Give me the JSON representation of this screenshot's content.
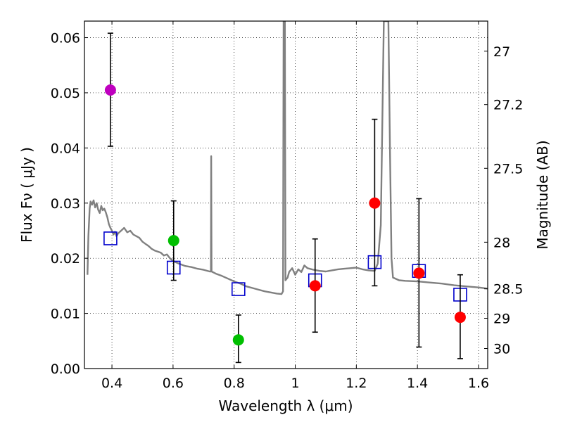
{
  "chart_data": {
    "type": "scatter",
    "xlabel": "Wavelength  λ (μm)",
    "ylabel": "Flux  Fν  ( μJy )",
    "ylabel_right": "Magnitude (AB)",
    "xlim": [
      0.31,
      1.63
    ],
    "ylim": [
      0.0,
      0.063
    ],
    "grid": true,
    "x_ticks": [
      {
        "value": 0.4,
        "label": "0.4"
      },
      {
        "value": 0.6,
        "label": "0.6"
      },
      {
        "value": 0.8,
        "label": "0.8"
      },
      {
        "value": 1.0,
        "label": "1"
      },
      {
        "value": 1.2,
        "label": "1.2"
      },
      {
        "value": 1.4,
        "label": "1.4"
      },
      {
        "value": 1.6,
        "label": "1.6"
      }
    ],
    "y_ticks": [
      {
        "value": 0.0,
        "label": "0.00"
      },
      {
        "value": 0.01,
        "label": "0.01"
      },
      {
        "value": 0.02,
        "label": "0.02"
      },
      {
        "value": 0.03,
        "label": "0.03"
      },
      {
        "value": 0.04,
        "label": "0.04"
      },
      {
        "value": 0.05,
        "label": "0.05"
      },
      {
        "value": 0.06,
        "label": "0.06"
      }
    ],
    "mag_ticks": [
      {
        "value": 27,
        "label": "27"
      },
      {
        "value": 27.2,
        "label": "27.2"
      },
      {
        "value": 27.5,
        "label": "27.5"
      },
      {
        "value": 28,
        "label": "28"
      },
      {
        "value": 28.5,
        "label": "28.5"
      },
      {
        "value": 29,
        "label": "29"
      },
      {
        "value": 30,
        "label": "30"
      }
    ],
    "observed": [
      {
        "x": 0.395,
        "y": 0.0505,
        "err_low": 0.0403,
        "err_high": 0.0608,
        "color": "#bf00bf"
      },
      {
        "x": 0.602,
        "y": 0.0232,
        "err_low": 0.016,
        "err_high": 0.0304,
        "color": "#00bf00"
      },
      {
        "x": 0.814,
        "y": 0.0052,
        "err_low": 0.0011,
        "err_high": 0.0097,
        "color": "#00bf00"
      },
      {
        "x": 1.065,
        "y": 0.015,
        "err_low": 0.0066,
        "err_high": 0.0235,
        "color": "#ff0000"
      },
      {
        "x": 1.26,
        "y": 0.03,
        "err_low": 0.015,
        "err_high": 0.0452,
        "color": "#ff0000"
      },
      {
        "x": 1.405,
        "y": 0.0173,
        "err_low": 0.0039,
        "err_high": 0.0308,
        "color": "#ff0000"
      },
      {
        "x": 1.54,
        "y": 0.0093,
        "err_low": 0.0018,
        "err_high": 0.017,
        "color": "#ff0000"
      }
    ],
    "model_points": [
      {
        "x": 0.395,
        "y": 0.0236
      },
      {
        "x": 0.602,
        "y": 0.0183
      },
      {
        "x": 0.814,
        "y": 0.0144
      },
      {
        "x": 1.065,
        "y": 0.016
      },
      {
        "x": 1.26,
        "y": 0.0193
      },
      {
        "x": 1.405,
        "y": 0.0177
      },
      {
        "x": 1.54,
        "y": 0.0134
      }
    ],
    "model_spectrum": [
      [
        0.32,
        0.017
      ],
      [
        0.323,
        0.024
      ],
      [
        0.327,
        0.029
      ],
      [
        0.33,
        0.0303
      ],
      [
        0.335,
        0.0297
      ],
      [
        0.34,
        0.0305
      ],
      [
        0.345,
        0.0292
      ],
      [
        0.35,
        0.03
      ],
      [
        0.355,
        0.0288
      ],
      [
        0.36,
        0.0282
      ],
      [
        0.365,
        0.0295
      ],
      [
        0.37,
        0.0287
      ],
      [
        0.375,
        0.029
      ],
      [
        0.38,
        0.0283
      ],
      [
        0.385,
        0.0274
      ],
      [
        0.39,
        0.0262
      ],
      [
        0.395,
        0.0255
      ],
      [
        0.4,
        0.025
      ],
      [
        0.405,
        0.0243
      ],
      [
        0.41,
        0.0248
      ],
      [
        0.415,
        0.024
      ],
      [
        0.42,
        0.0245
      ],
      [
        0.43,
        0.025
      ],
      [
        0.44,
        0.0255
      ],
      [
        0.45,
        0.0247
      ],
      [
        0.46,
        0.025
      ],
      [
        0.47,
        0.0243
      ],
      [
        0.48,
        0.024
      ],
      [
        0.49,
        0.0237
      ],
      [
        0.5,
        0.023
      ],
      [
        0.51,
        0.0226
      ],
      [
        0.52,
        0.0222
      ],
      [
        0.53,
        0.0217
      ],
      [
        0.54,
        0.0214
      ],
      [
        0.55,
        0.0212
      ],
      [
        0.56,
        0.021
      ],
      [
        0.57,
        0.0205
      ],
      [
        0.58,
        0.0207
      ],
      [
        0.59,
        0.02
      ],
      [
        0.6,
        0.0195
      ],
      [
        0.62,
        0.019
      ],
      [
        0.64,
        0.0186
      ],
      [
        0.66,
        0.0184
      ],
      [
        0.68,
        0.0181
      ],
      [
        0.7,
        0.0179
      ],
      [
        0.72,
        0.0176
      ],
      [
        0.724,
        0.0176
      ],
      [
        0.725,
        0.0385
      ],
      [
        0.726,
        0.0176
      ],
      [
        0.74,
        0.0172
      ],
      [
        0.76,
        0.0168
      ],
      [
        0.78,
        0.0163
      ],
      [
        0.8,
        0.0158
      ],
      [
        0.82,
        0.0154
      ],
      [
        0.84,
        0.0149
      ],
      [
        0.86,
        0.0146
      ],
      [
        0.88,
        0.0143
      ],
      [
        0.9,
        0.014
      ],
      [
        0.92,
        0.0138
      ],
      [
        0.94,
        0.0136
      ],
      [
        0.955,
        0.0135
      ],
      [
        0.96,
        0.014
      ],
      [
        0.962,
        0.063
      ],
      [
        0.966,
        0.063
      ],
      [
        0.968,
        0.016
      ],
      [
        0.975,
        0.0165
      ],
      [
        0.98,
        0.0175
      ],
      [
        0.99,
        0.0182
      ],
      [
        1.0,
        0.017
      ],
      [
        1.01,
        0.018
      ],
      [
        1.02,
        0.0175
      ],
      [
        1.03,
        0.0187
      ],
      [
        1.04,
        0.0182
      ],
      [
        1.06,
        0.0179
      ],
      [
        1.08,
        0.0177
      ],
      [
        1.1,
        0.0176
      ],
      [
        1.12,
        0.0178
      ],
      [
        1.14,
        0.018
      ],
      [
        1.16,
        0.0181
      ],
      [
        1.18,
        0.0182
      ],
      [
        1.2,
        0.0183
      ],
      [
        1.22,
        0.018
      ],
      [
        1.24,
        0.0178
      ],
      [
        1.26,
        0.0177
      ],
      [
        1.27,
        0.019
      ],
      [
        1.28,
        0.026
      ],
      [
        1.285,
        0.044
      ],
      [
        1.29,
        0.063
      ],
      [
        1.305,
        0.063
      ],
      [
        1.31,
        0.04
      ],
      [
        1.315,
        0.02
      ],
      [
        1.32,
        0.0165
      ],
      [
        1.34,
        0.016
      ],
      [
        1.36,
        0.0159
      ],
      [
        1.4,
        0.0158
      ],
      [
        1.44,
        0.0156
      ],
      [
        1.48,
        0.0154
      ],
      [
        1.52,
        0.0151
      ],
      [
        1.56,
        0.0149
      ],
      [
        1.6,
        0.0147
      ],
      [
        1.63,
        0.0145
      ]
    ]
  }
}
